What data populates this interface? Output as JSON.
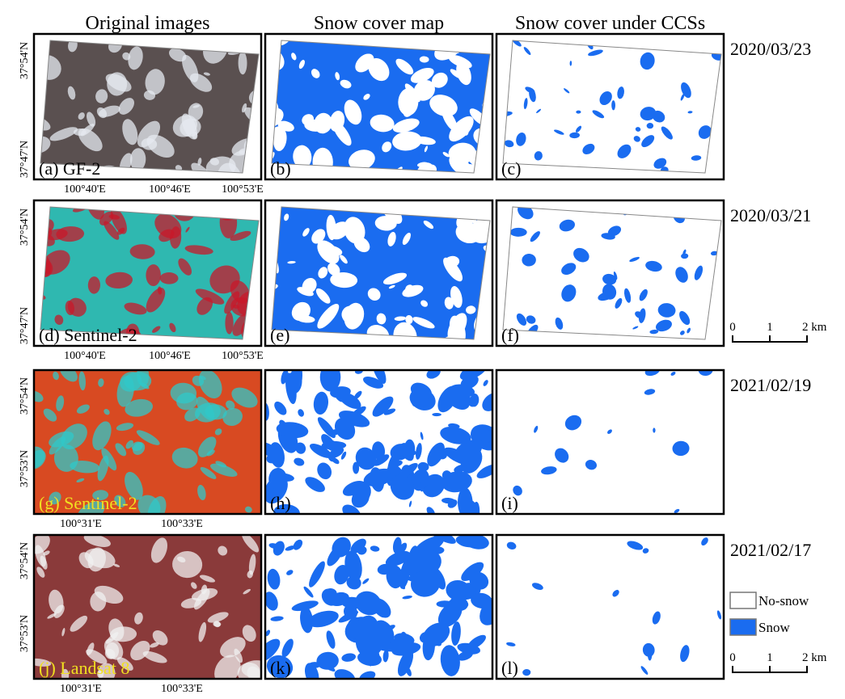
{
  "column_headers": [
    "Original images",
    "Snow cover map",
    "Snow cover under CCSs"
  ],
  "rows": [
    {
      "date": "2020/03/23",
      "panels": [
        "(a) GF-2",
        "(b)",
        "(c)"
      ],
      "lat_labels": [
        "37°54'N",
        "37°47'N"
      ],
      "lon_labels": [
        "100°40'E",
        "100°46'E",
        "100°53'E"
      ]
    },
    {
      "date": "2020/03/21",
      "panels": [
        "(d) Sentinel-2",
        "(e)",
        "(f)"
      ],
      "lat_labels": [
        "37°54'N",
        "37°47'N"
      ],
      "lon_labels": [
        "100°40'E",
        "100°46'E",
        "100°53'E"
      ]
    },
    {
      "date": "2021/02/19",
      "panels": [
        "(g) Sentinel-2",
        "(h)",
        "(i)"
      ],
      "lat_labels": [
        "37°54'N",
        "37°53'N"
      ],
      "lon_labels": [
        "100°31'E",
        "100°33'E"
      ]
    },
    {
      "date": "2021/02/17",
      "panels": [
        "(j) Landsat 8",
        "(k)",
        "(l)"
      ],
      "lat_labels": [
        "37°54'N",
        "37°53'N"
      ],
      "lon_labels": [
        "100°31'E",
        "100°33'E"
      ]
    }
  ],
  "scale_bars": [
    [
      "0",
      "1",
      "2 km"
    ],
    [
      "0",
      "1",
      "2 km"
    ]
  ],
  "legend": [
    "No-snow",
    "Snow"
  ]
}
